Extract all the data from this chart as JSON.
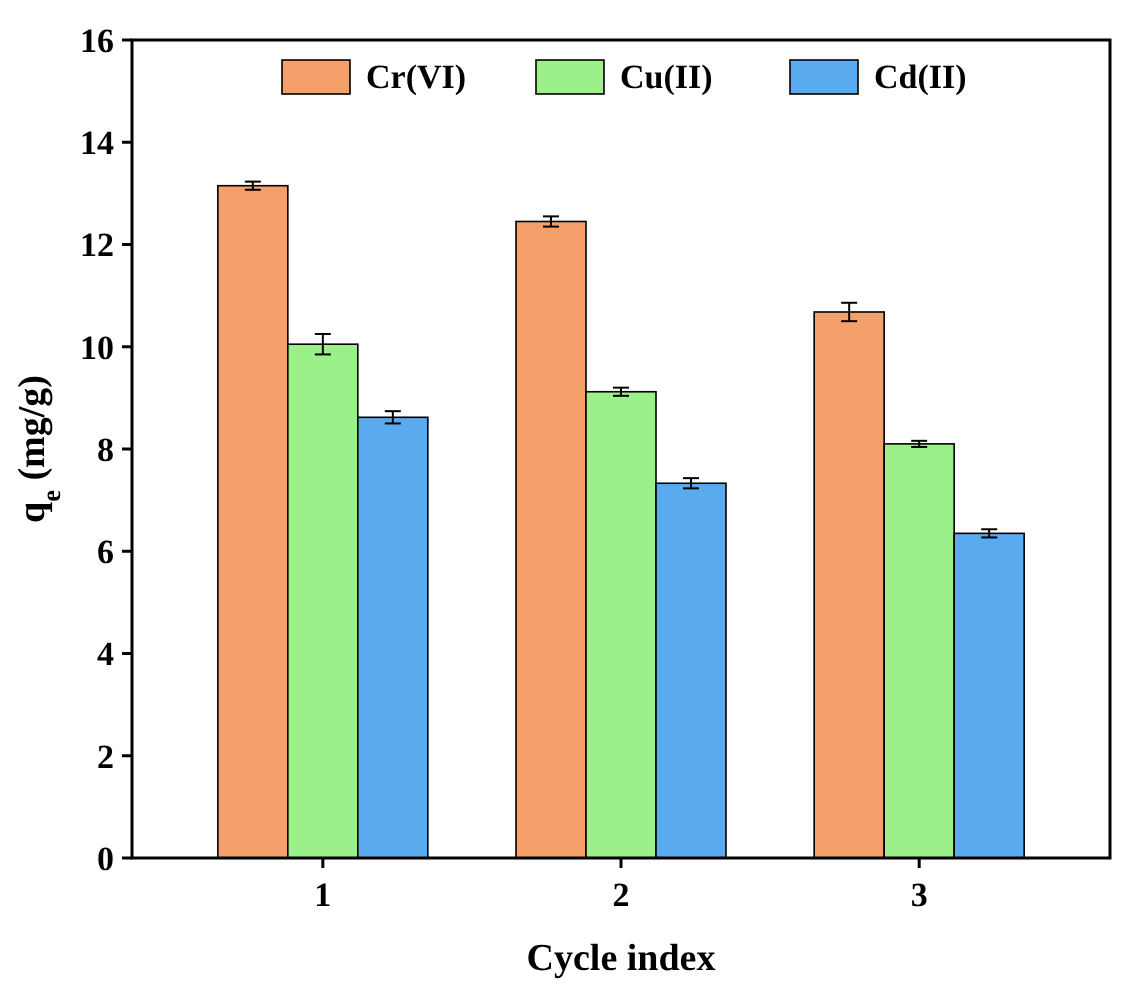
{
  "chart_data": {
    "type": "bar",
    "xlabel": "Cycle index",
    "ylabel": "q$_{e}$ (mg/g)",
    "categories": [
      "1",
      "2",
      "3"
    ],
    "series": [
      {
        "name": "Cr(VI)",
        "color": "#f5a06a",
        "values": [
          13.15,
          12.45,
          10.68
        ],
        "errors": [
          0.08,
          0.1,
          0.18
        ]
      },
      {
        "name": "Cu(II)",
        "color": "#9cf08a",
        "values": [
          10.05,
          9.12,
          8.1
        ],
        "errors": [
          0.2,
          0.08,
          0.06
        ]
      },
      {
        "name": "Cd(II)",
        "color": "#5aaaf0",
        "values": [
          8.62,
          7.33,
          6.35
        ],
        "errors": [
          0.12,
          0.1,
          0.08
        ]
      }
    ],
    "ylim": [
      0,
      16
    ],
    "yticks": [
      0,
      2,
      4,
      6,
      8,
      10,
      12,
      14,
      16
    ],
    "grid": false,
    "legend": "top"
  }
}
